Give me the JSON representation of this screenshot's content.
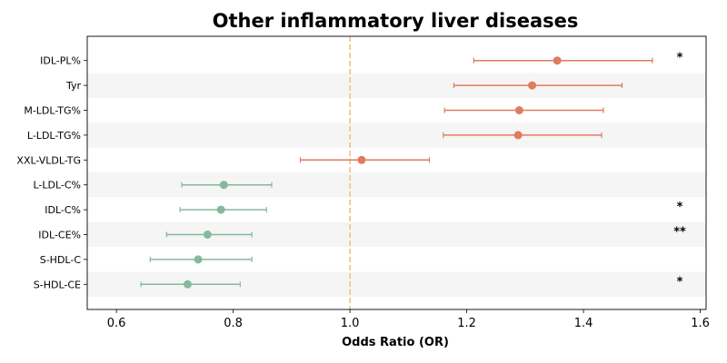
{
  "chart_data": {
    "type": "forest",
    "title": "Other inflammatory liver diseases",
    "xlabel": "Odds Ratio (OR)",
    "ylabel": "",
    "xlim": [
      0.55,
      1.61
    ],
    "xticks": [
      0.6,
      0.8,
      1.0,
      1.2,
      1.4,
      1.6
    ],
    "xtick_labels": [
      "0.6",
      "0.8",
      "1.0",
      "1.2",
      "1.4",
      "1.6"
    ],
    "reference_line": 1.0,
    "reference_line_style": "dashed",
    "grid": false,
    "colors": {
      "positive": "#e07b5f",
      "negative": "#84b99b",
      "reference": "#f5c07f",
      "band": "#f5f5f5"
    },
    "items": [
      {
        "label": "IDL-PL%",
        "or": 1.355,
        "lower": 1.212,
        "upper": 1.518,
        "sig": "*"
      },
      {
        "label": "Tyr",
        "or": 1.312,
        "lower": 1.178,
        "upper": 1.466,
        "sig": ""
      },
      {
        "label": "M-LDL-TG%",
        "or": 1.29,
        "lower": 1.162,
        "upper": 1.434,
        "sig": ""
      },
      {
        "label": "L-LDL-TG%",
        "or": 1.288,
        "lower": 1.16,
        "upper": 1.431,
        "sig": ""
      },
      {
        "label": "XXL-VLDL-TG",
        "or": 1.02,
        "lower": 0.915,
        "upper": 1.136,
        "sig": ""
      },
      {
        "label": "L-LDL-C%",
        "or": 0.784,
        "lower": 0.712,
        "upper": 0.866,
        "sig": ""
      },
      {
        "label": "IDL-C%",
        "or": 0.779,
        "lower": 0.709,
        "upper": 0.857,
        "sig": "*"
      },
      {
        "label": "IDL-CE%",
        "or": 0.756,
        "lower": 0.686,
        "upper": 0.832,
        "sig": "**"
      },
      {
        "label": "S-HDL-C",
        "or": 0.74,
        "lower": 0.658,
        "upper": 0.832,
        "sig": ""
      },
      {
        "label": "S-HDL-CE",
        "or": 0.722,
        "lower": 0.642,
        "upper": 0.812,
        "sig": "*"
      }
    ]
  }
}
